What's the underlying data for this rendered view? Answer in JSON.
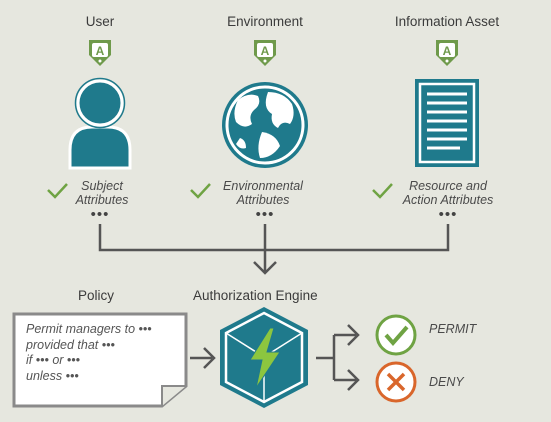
{
  "sources": [
    {
      "title": "User",
      "attribute_lines": [
        "Subject",
        "Attributes"
      ]
    },
    {
      "title": "Environment",
      "attribute_lines": [
        "Environmental",
        "Attributes"
      ]
    },
    {
      "title": "Information Asset",
      "attribute_lines": [
        "Resource and",
        "Action Attributes"
      ]
    }
  ],
  "badge_letter": "A",
  "ellipsis": "•••",
  "policy": {
    "title": "Policy",
    "lines": [
      "Permit managers to •••",
      "provided that •••",
      "if ••• or •••",
      "unless •••"
    ]
  },
  "engine": {
    "title": "Authorization Engine"
  },
  "decisions": {
    "permit": "PERMIT",
    "deny": "DENY"
  },
  "colors": {
    "background": "#e6e7df",
    "icon_teal": "#1f7a8c",
    "badge_green": "#6f9a4b",
    "check_green": "#6fa343",
    "deny_orange": "#d9662b",
    "line_gray": "#555555"
  }
}
